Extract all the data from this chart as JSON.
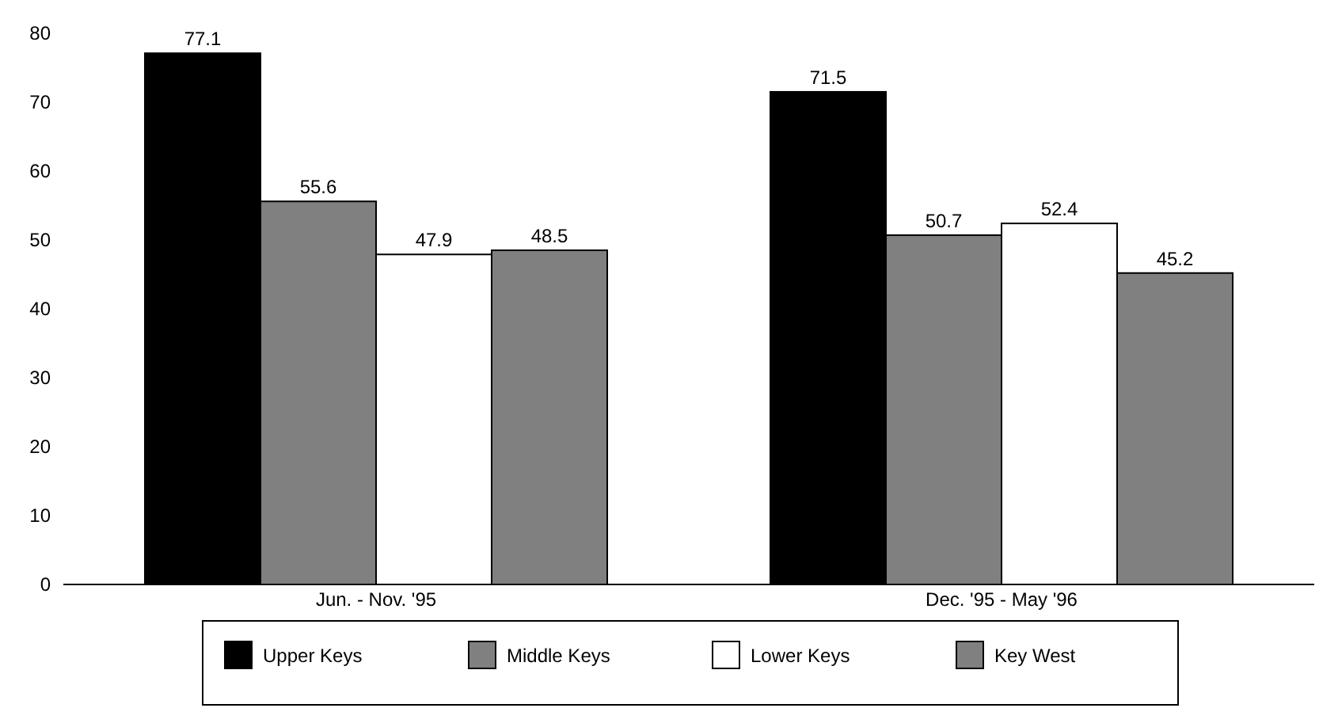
{
  "chart_data": {
    "type": "bar",
    "categories": [
      "Jun. - Nov. '95",
      "Dec. '95 - May '96"
    ],
    "series": [
      {
        "name": "Upper Keys",
        "color": "#000000",
        "values": [
          77.1,
          71.5
        ]
      },
      {
        "name": "Middle Keys",
        "color": "#808080",
        "values": [
          55.6,
          50.7
        ]
      },
      {
        "name": "Lower Keys",
        "color": "#ffffff",
        "values": [
          47.9,
          52.4
        ]
      },
      {
        "name": "Key West",
        "color": "#808080",
        "values": [
          48.5,
          45.2
        ]
      }
    ],
    "ylim": [
      0,
      80
    ],
    "yticks": [
      0,
      10,
      20,
      30,
      40,
      50,
      60,
      70,
      80
    ],
    "data_labels": true,
    "grid": false,
    "legend": "bottom"
  }
}
